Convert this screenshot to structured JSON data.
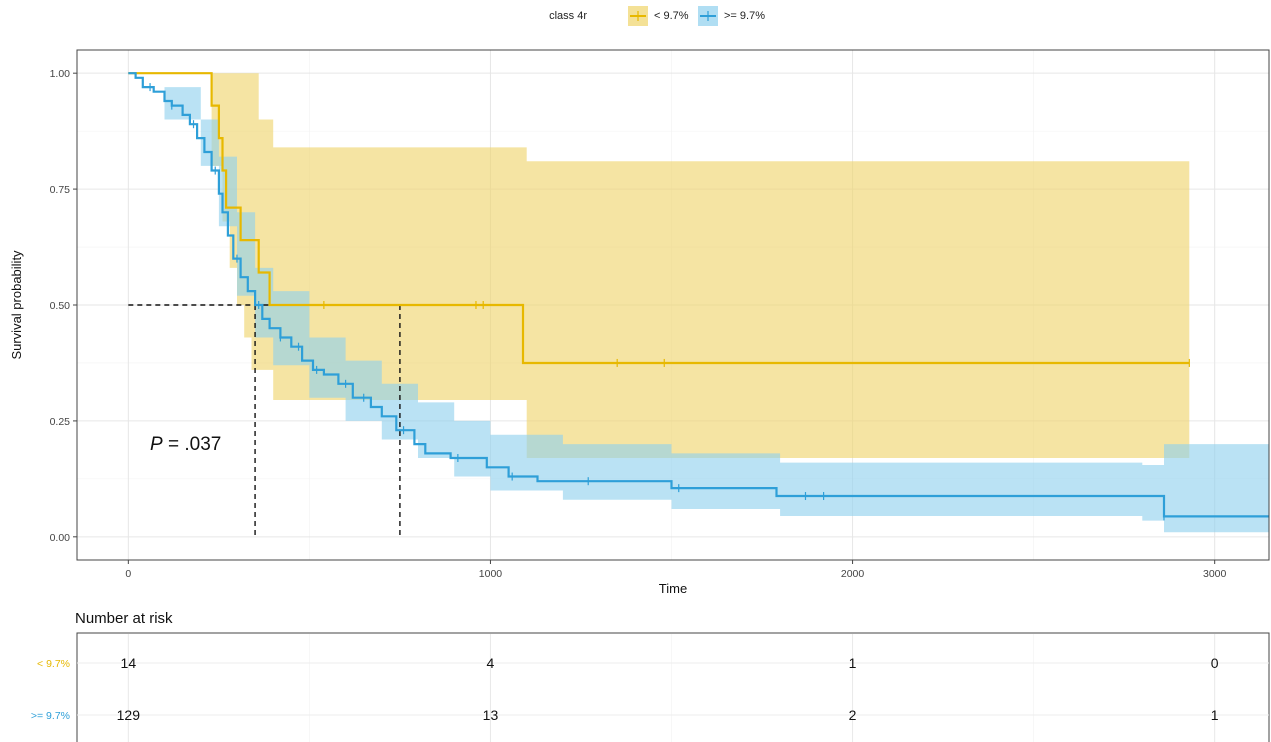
{
  "chart_data": {
    "type": "line",
    "subtype": "kaplan-meier",
    "xlabel": "Time",
    "ylabel": "Survival probability",
    "xlim": [
      0,
      3150
    ],
    "ylim": [
      0,
      1
    ],
    "x_ticks": [
      0,
      1000,
      2000,
      3000
    ],
    "x_tick_labels": [
      "0",
      "1000",
      "2000",
      "3000"
    ],
    "y_ticks": [
      0,
      0.25,
      0.5,
      0.75,
      1
    ],
    "y_tick_labels": [
      "0.00",
      "0.25",
      "0.50",
      "0.75",
      "1.00"
    ],
    "grid": true,
    "legend": {
      "title": "class 4r",
      "position": "top",
      "entries": [
        "< 9.7%",
        ">= 9.7%"
      ]
    },
    "annotation": {
      "text_italic": "P",
      "text_rest": " = .037",
      "x": 60,
      "y": 0.2
    },
    "median_lines": [
      {
        "series": ">= 9.7%",
        "x": 350,
        "y": 0.5
      },
      {
        "series": "< 9.7%",
        "x": 750,
        "y": 0.5
      }
    ],
    "series": [
      {
        "name": "< 9.7%",
        "color": "#E7B800",
        "band_color": "#EFD46A",
        "steps": [
          [
            0,
            1.0
          ],
          [
            230,
            0.93
          ],
          [
            250,
            0.86
          ],
          [
            260,
            0.79
          ],
          [
            270,
            0.71
          ],
          [
            310,
            0.64
          ],
          [
            360,
            0.57
          ],
          [
            390,
            0.5
          ],
          [
            1090,
            0.375
          ],
          [
            2930,
            0.375
          ]
        ],
        "upper": [
          [
            0,
            1.0
          ],
          [
            230,
            1.0
          ],
          [
            360,
            0.9
          ],
          [
            400,
            0.84
          ],
          [
            1100,
            0.81
          ],
          [
            2930,
            0.81
          ]
        ],
        "lower": [
          [
            0,
            1.0
          ],
          [
            230,
            0.8
          ],
          [
            260,
            0.68
          ],
          [
            280,
            0.58
          ],
          [
            300,
            0.5
          ],
          [
            320,
            0.43
          ],
          [
            340,
            0.36
          ],
          [
            400,
            0.295
          ],
          [
            1100,
            0.17
          ],
          [
            1800,
            0.17
          ],
          [
            2930,
            0.17
          ]
        ],
        "censor_times": [
          540,
          960,
          980,
          1350,
          1480,
          2930
        ]
      },
      {
        "name": ">= 9.7%",
        "color": "#2E9FD8",
        "band_color": "#8FD0EE",
        "steps": [
          [
            0,
            1.0
          ],
          [
            20,
            0.99
          ],
          [
            40,
            0.97
          ],
          [
            70,
            0.96
          ],
          [
            100,
            0.94
          ],
          [
            120,
            0.93
          ],
          [
            150,
            0.91
          ],
          [
            170,
            0.89
          ],
          [
            190,
            0.86
          ],
          [
            210,
            0.83
          ],
          [
            230,
            0.79
          ],
          [
            250,
            0.74
          ],
          [
            260,
            0.7
          ],
          [
            275,
            0.65
          ],
          [
            290,
            0.6
          ],
          [
            310,
            0.56
          ],
          [
            330,
            0.53
          ],
          [
            350,
            0.5
          ],
          [
            370,
            0.47
          ],
          [
            390,
            0.45
          ],
          [
            420,
            0.43
          ],
          [
            450,
            0.41
          ],
          [
            480,
            0.38
          ],
          [
            510,
            0.36
          ],
          [
            540,
            0.35
          ],
          [
            580,
            0.33
          ],
          [
            620,
            0.3
          ],
          [
            670,
            0.28
          ],
          [
            700,
            0.26
          ],
          [
            740,
            0.23
          ],
          [
            790,
            0.2
          ],
          [
            820,
            0.18
          ],
          [
            890,
            0.17
          ],
          [
            990,
            0.15
          ],
          [
            1050,
            0.13
          ],
          [
            1130,
            0.12
          ],
          [
            1500,
            0.105
          ],
          [
            1790,
            0.088
          ],
          [
            2860,
            0.044
          ],
          [
            3150,
            0.044
          ]
        ],
        "upper": [
          [
            0,
            1.0
          ],
          [
            100,
            0.97
          ],
          [
            200,
            0.9
          ],
          [
            250,
            0.82
          ],
          [
            300,
            0.7
          ],
          [
            350,
            0.58
          ],
          [
            400,
            0.53
          ],
          [
            500,
            0.43
          ],
          [
            600,
            0.38
          ],
          [
            700,
            0.33
          ],
          [
            800,
            0.29
          ],
          [
            900,
            0.25
          ],
          [
            1000,
            0.22
          ],
          [
            1200,
            0.2
          ],
          [
            1500,
            0.18
          ],
          [
            1800,
            0.16
          ],
          [
            2800,
            0.155
          ],
          [
            2860,
            0.2
          ],
          [
            3150,
            0.2
          ]
        ],
        "lower": [
          [
            0,
            1.0
          ],
          [
            100,
            0.9
          ],
          [
            200,
            0.8
          ],
          [
            250,
            0.67
          ],
          [
            300,
            0.52
          ],
          [
            350,
            0.43
          ],
          [
            400,
            0.37
          ],
          [
            500,
            0.3
          ],
          [
            600,
            0.25
          ],
          [
            700,
            0.21
          ],
          [
            800,
            0.17
          ],
          [
            900,
            0.13
          ],
          [
            1000,
            0.1
          ],
          [
            1200,
            0.08
          ],
          [
            1500,
            0.06
          ],
          [
            1800,
            0.045
          ],
          [
            2800,
            0.035
          ],
          [
            2860,
            0.01
          ],
          [
            3150,
            0.01
          ]
        ],
        "censor_times": [
          60,
          120,
          180,
          240,
          300,
          360,
          420,
          470,
          520,
          600,
          650,
          760,
          910,
          1060,
          1270,
          1520,
          1870,
          1920,
          2860
        ]
      }
    ]
  },
  "risk_table": {
    "title": "Number at risk",
    "groups": [
      {
        "label": "< 9.7%",
        "color": "#E7B800",
        "values": [
          "14",
          "4",
          "1",
          "0"
        ]
      },
      {
        "label": ">= 9.7%",
        "color": "#2E9FD8",
        "values": [
          "129",
          "13",
          "2",
          "1"
        ]
      }
    ]
  }
}
